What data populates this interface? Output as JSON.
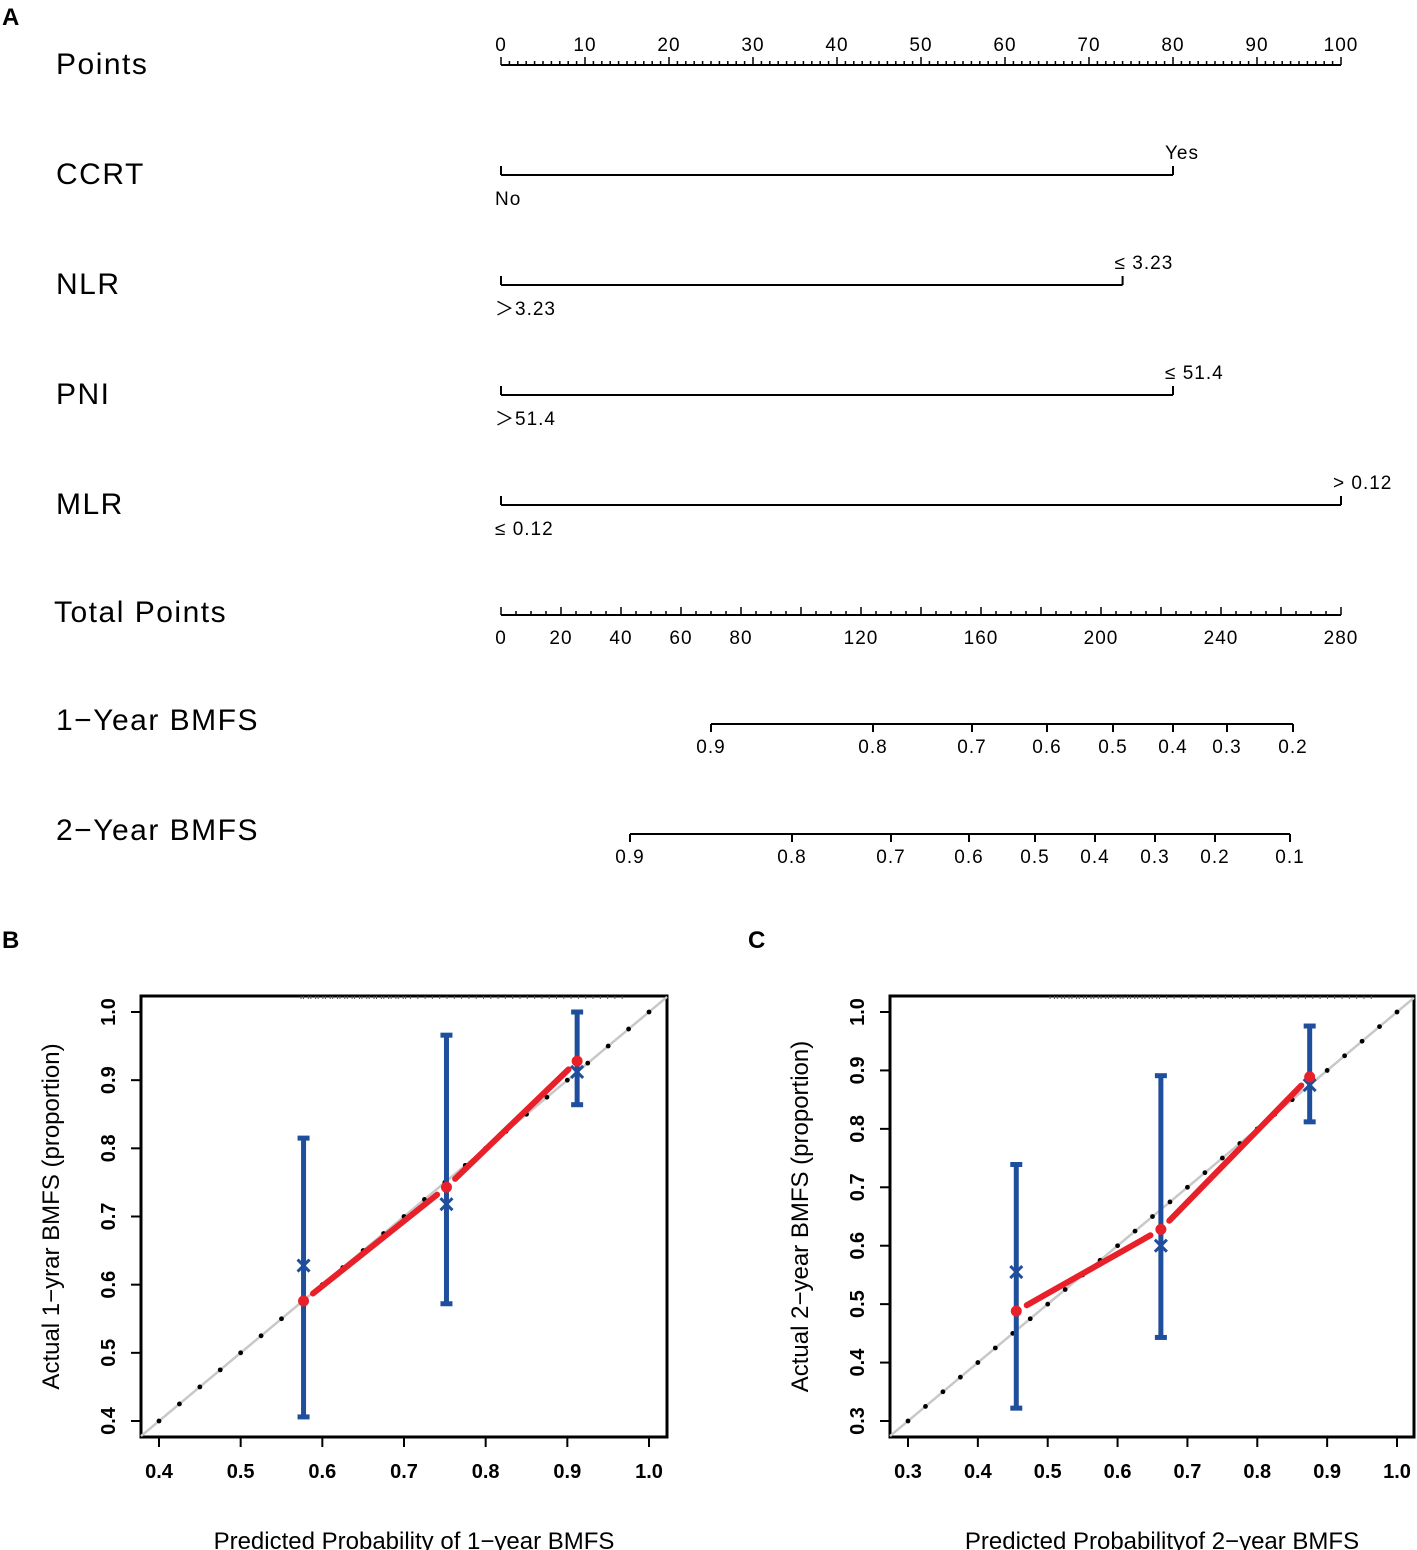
{
  "panel_labels": {
    "a": "A",
    "b": "B",
    "c": "C"
  },
  "colors": {
    "axis": "#000000",
    "ideal_line": "#c8c8c8",
    "ideal_dots": "#000000",
    "apparent": "#e8202a",
    "bias_corrected": "#1f4e9c"
  },
  "chart_data": [
    {
      "type": "nomogram",
      "panel": "A",
      "rows": [
        {
          "label": "Points",
          "kind": "scale",
          "min": 0,
          "max": 100,
          "tick_labels": [
            "0",
            "10",
            "20",
            "30",
            "40",
            "50",
            "60",
            "70",
            "80",
            "90",
            "100"
          ],
          "tick_values": [
            0,
            10,
            20,
            30,
            40,
            50,
            60,
            70,
            80,
            90,
            100
          ]
        },
        {
          "label": "CCRT",
          "kind": "variable",
          "points_max": 80,
          "low": {
            "text": "No",
            "points": 0
          },
          "high": {
            "text": "Yes",
            "points": 80
          }
        },
        {
          "label": "NLR",
          "kind": "variable",
          "points_max": 74,
          "low": {
            "text": "＞3.23",
            "points": 0
          },
          "high": {
            "text": "≤ 3.23",
            "points": 74
          }
        },
        {
          "label": "PNI",
          "kind": "variable",
          "points_max": 80,
          "low": {
            "text": "＞51.4",
            "points": 0
          },
          "high": {
            "text": "≤ 51.4",
            "points": 80
          }
        },
        {
          "label": "MLR",
          "kind": "variable",
          "points_max": 100,
          "low": {
            "text": "≤ 0.12",
            "points": 0
          },
          "high": {
            "text": "> 0.12",
            "points": 100
          }
        },
        {
          "label": "Total Points",
          "kind": "scale",
          "min": 0,
          "max": 280,
          "tick_labels": [
            "0",
            "20",
            "40",
            "60",
            "80",
            "120",
            "160",
            "200",
            "240",
            "280"
          ],
          "tick_values": [
            0,
            20,
            40,
            60,
            80,
            120,
            160,
            200,
            240,
            280
          ]
        },
        {
          "label": "1−Year BMFS",
          "kind": "probability",
          "tick_labels": [
            "0.9",
            "0.8",
            "0.7",
            "0.6",
            "0.5",
            "0.4",
            "0.3",
            "0.2"
          ],
          "total_points": [
            70,
            124,
            157,
            182,
            204,
            224,
            242,
            264
          ]
        },
        {
          "label": "2−Year BMFS",
          "kind": "probability",
          "tick_labels": [
            "0.9",
            "0.8",
            "0.7",
            "0.6",
            "0.5",
            "0.4",
            "0.3",
            "0.2",
            "0.1"
          ],
          "total_points": [
            43,
            97,
            130,
            156,
            178,
            198,
            218,
            238,
            263
          ]
        }
      ]
    },
    {
      "type": "calibration",
      "panel": "B",
      "xlabel": "Predicted Probability of 1−year BMFS",
      "ylabel": "Actual 1−yrar BMFS (proportion)",
      "xlim": [
        0.4,
        1.0
      ],
      "ylim": [
        0.4,
        1.0
      ],
      "x_ticks": [
        "0.4",
        "0.5",
        "0.6",
        "0.7",
        "0.8",
        "0.9",
        "1.0"
      ],
      "y_ticks": [
        "0.4",
        "0.5",
        "0.6",
        "0.7",
        "0.8",
        "0.9",
        "1.0"
      ],
      "ideal": [
        [
          0.4,
          0.4
        ],
        [
          1.0,
          1.0
        ]
      ],
      "apparent": {
        "x": [
          0.577,
          0.752,
          0.912
        ],
        "y": [
          0.576,
          0.743,
          0.928
        ]
      },
      "bias_corrected": {
        "x": [
          0.577,
          0.752,
          0.912
        ],
        "y": [
          0.628,
          0.718,
          0.912
        ],
        "lower": [
          0.406,
          0.572,
          0.864
        ],
        "upper": [
          0.815,
          0.966,
          1.0
        ]
      }
    },
    {
      "type": "calibration",
      "panel": "C",
      "xlabel": "Predicted Probabilityof 2−year BMFS",
      "ylabel": "Actual 2−year BMFS (proportion)",
      "xlim": [
        0.3,
        1.0
      ],
      "ylim": [
        0.3,
        1.0
      ],
      "x_ticks": [
        "0.3",
        "0.4",
        "0.5",
        "0.6",
        "0.7",
        "0.8",
        "0.9",
        "1.0"
      ],
      "y_ticks": [
        "0.3",
        "0.4",
        "0.5",
        "0.6",
        "0.7",
        "0.8",
        "0.9",
        "1.0"
      ],
      "ideal": [
        [
          0.3,
          0.3
        ],
        [
          1.0,
          1.0
        ]
      ],
      "apparent": {
        "x": [
          0.455,
          0.662,
          0.875
        ],
        "y": [
          0.488,
          0.628,
          0.889
        ]
      },
      "bias_corrected": {
        "x": [
          0.455,
          0.662,
          0.875
        ],
        "y": [
          0.555,
          0.6,
          0.875
        ],
        "lower": [
          0.322,
          0.443,
          0.812
        ],
        "upper": [
          0.739,
          0.891,
          0.976
        ]
      }
    }
  ]
}
